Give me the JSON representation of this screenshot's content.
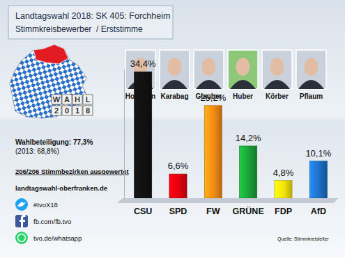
{
  "chart_data": {
    "type": "bar",
    "title": "Landtagswahl 2018: SK 405: Forchheim",
    "subtitle": "Stimmkreisbewerber  / Erststimme",
    "categories": [
      "CSU",
      "SPD",
      "FW",
      "GRÜNE",
      "FDP",
      "AfD"
    ],
    "values": [
      34.4,
      6.6,
      25.2,
      14.2,
      4.8,
      10.1
    ],
    "value_labels": [
      "34,4%",
      "6,6%",
      "25,2%",
      "14,2%",
      "4,8%",
      "10,1%"
    ],
    "colors": [
      "#111111",
      "#e3000f",
      "#f28a12",
      "#1aa037",
      "#f2e20a",
      "#1d6fc4"
    ],
    "ylim": [
      0,
      35
    ],
    "data_labels": true,
    "tick_labels": "x",
    "candidates": [
      "Hofmann",
      "Karabag",
      "Glauber",
      "Huber",
      "Körber",
      "Pflaum"
    ],
    "annotations": [
      "Wahlbeteiligung: 77,3%",
      "(2013: 68,8%)",
      "206/206 Stimmbezirken ausgewertet",
      "landtagswahl-oberfranken.de",
      "#tvoX18",
      "fb.com/fb.tvo",
      "tvo.de/whatsapp",
      "Quelle: Stimmkreisleiter",
      "WAHL",
      "2018"
    ]
  }
}
